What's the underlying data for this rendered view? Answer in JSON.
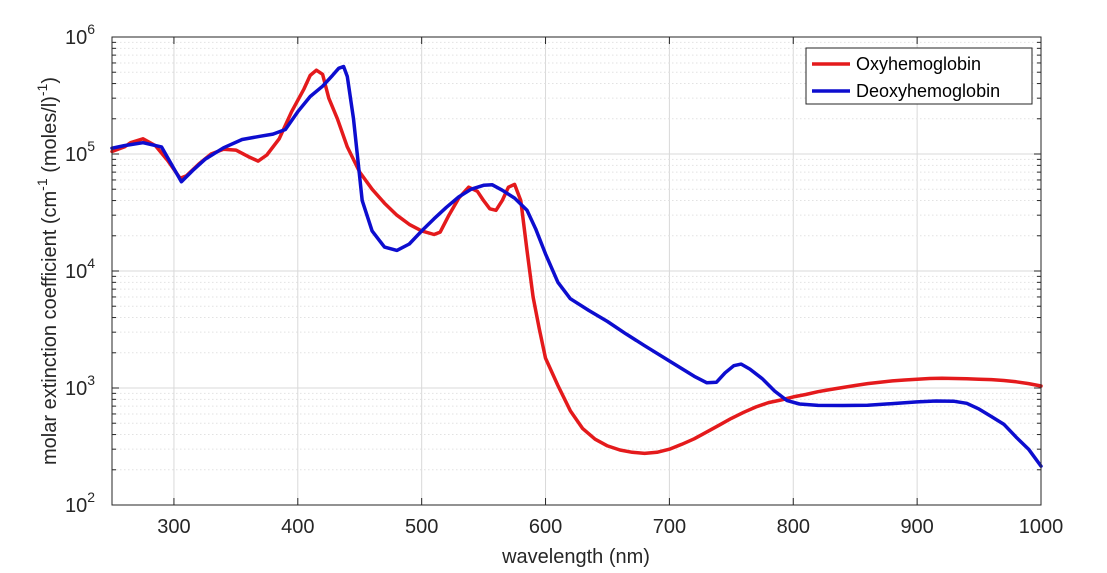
{
  "chart_data": {
    "type": "line",
    "title": "",
    "xlabel": "wavelength (nm)",
    "ylabel": {
      "prefix": "molar extinction coefficient (cm",
      "sup1": "-1",
      "middle": " (moles/l)",
      "sup2": "-1",
      "suffix": ")"
    },
    "xlim": [
      250,
      1000
    ],
    "ylim": [
      100,
      1000000
    ],
    "yscale": "log",
    "grid": true,
    "legend_position": "top-right",
    "x_ticks": [
      300,
      400,
      500,
      600,
      700,
      800,
      900,
      1000
    ],
    "y_ticks": [
      {
        "value": 100,
        "base": "10",
        "exp": "2"
      },
      {
        "value": 1000,
        "base": "10",
        "exp": "3"
      },
      {
        "value": 10000,
        "base": "10",
        "exp": "4"
      },
      {
        "value": 100000,
        "base": "10",
        "exp": "5"
      },
      {
        "value": 1000000,
        "base": "10",
        "exp": "6"
      }
    ],
    "series": [
      {
        "name": "Oxyhemoglobin",
        "color": "#e41a1c",
        "x": [
          250,
          260,
          265,
          275,
          285,
          295,
          305,
          310,
          320,
          330,
          340,
          350,
          360,
          368,
          375,
          385,
          395,
          405,
          410,
          415,
          420,
          425,
          432,
          440,
          450,
          460,
          470,
          480,
          490,
          500,
          510,
          515,
          522,
          530,
          538,
          545,
          550,
          555,
          560,
          565,
          570,
          575,
          580,
          585,
          590,
          595,
          600,
          610,
          620,
          630,
          640,
          650,
          660,
          670,
          680,
          690,
          700,
          710,
          720,
          730,
          740,
          750,
          760,
          770,
          780,
          790,
          800,
          810,
          820,
          830,
          840,
          850,
          860,
          870,
          880,
          890,
          900,
          910,
          920,
          930,
          940,
          950,
          960,
          970,
          980,
          990,
          1000
        ],
        "y": [
          105000,
          115000,
          125000,
          135000,
          118000,
          88000,
          62000,
          65000,
          82000,
          100000,
          110000,
          108000,
          95000,
          87000,
          98000,
          135000,
          230000,
          360000,
          470000,
          520000,
          480000,
          300000,
          200000,
          115000,
          70000,
          50000,
          38000,
          30000,
          25000,
          22000,
          20500,
          21500,
          30000,
          42000,
          52000,
          48000,
          40000,
          34000,
          33000,
          40000,
          52000,
          55000,
          40000,
          15000,
          6000,
          3200,
          1800,
          1050,
          640,
          450,
          365,
          320,
          295,
          282,
          276,
          282,
          300,
          330,
          368,
          420,
          480,
          550,
          620,
          690,
          750,
          790,
          840,
          880,
          930,
          970,
          1010,
          1050,
          1090,
          1120,
          1150,
          1170,
          1190,
          1205,
          1210,
          1205,
          1200,
          1190,
          1180,
          1160,
          1130,
          1090,
          1040
        ]
      },
      {
        "name": "Deoxyhemoglobin",
        "color": "#0d0dcf",
        "x": [
          250,
          260,
          275,
          290,
          300,
          306,
          315,
          325,
          340,
          355,
          370,
          380,
          390,
          400,
          410,
          420,
          428,
          433,
          437,
          440,
          445,
          452,
          460,
          470,
          480,
          490,
          500,
          510,
          520,
          530,
          540,
          550,
          557,
          565,
          575,
          585,
          592,
          600,
          610,
          620,
          635,
          650,
          665,
          680,
          700,
          720,
          730,
          738,
          745,
          752,
          758,
          765,
          775,
          785,
          795,
          805,
          820,
          840,
          860,
          880,
          900,
          915,
          930,
          940,
          950,
          960,
          970,
          980,
          990,
          1000
        ],
        "y": [
          112000,
          118000,
          125000,
          115000,
          75000,
          58000,
          72000,
          90000,
          113000,
          133000,
          142000,
          148000,
          162000,
          230000,
          310000,
          380000,
          470000,
          540000,
          560000,
          460000,
          200000,
          40000,
          22000,
          16000,
          15000,
          17000,
          22000,
          28000,
          35000,
          43000,
          50000,
          54000,
          54500,
          49000,
          42000,
          33000,
          23000,
          14000,
          8000,
          5800,
          4600,
          3700,
          2900,
          2300,
          1700,
          1260,
          1110,
          1120,
          1350,
          1550,
          1600,
          1450,
          1200,
          940,
          780,
          730,
          710,
          708,
          712,
          735,
          760,
          775,
          770,
          740,
          660,
          570,
          490,
          380,
          300,
          215
        ]
      }
    ]
  }
}
